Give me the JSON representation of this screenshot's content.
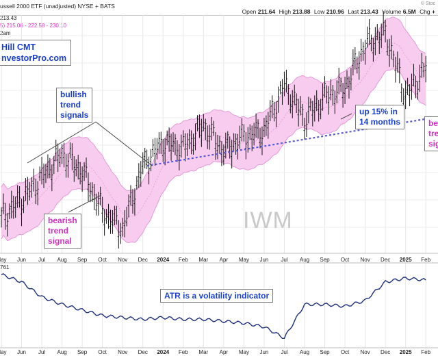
{
  "header": {
    "title": "ussell 2000 ETF (unadjusted) NYSE + BATS",
    "stockcharts_label": "© Stoc",
    "quote": {
      "open_label": "Open",
      "open": "211.64",
      "high_label": "High",
      "high": "213.88",
      "low_label": "Low",
      "low": "210.96",
      "last_label": "Last",
      "last": "213.43",
      "volume_label": "Volume",
      "volume": "6.5M",
      "chg_label": "Chg",
      "chg": "+"
    },
    "price_line": "213.43",
    "band_line": "5) 215.06 - 222.58 - 230.10",
    "time_line": "2am"
  },
  "brand": {
    "line1": "Hill CMT",
    "line2": "nvestorPro.com"
  },
  "annotations": {
    "bullish": "bullish\ntrend\nsignals",
    "bearish": "bearish\ntrend\nsignal",
    "up": "up 15% in\n14 months",
    "right_cut": "be\ntre\nsig"
  },
  "watermark": "IWM",
  "atr": {
    "label": "761",
    "note": "ATR is a volatility indicator"
  },
  "colors": {
    "band_fill": "#f8ccee",
    "band_line": "#e39ad6",
    "trendline": "#5b5bd6",
    "atr_line": "#1c2f7a",
    "annotation_blue": "#1a3fd0",
    "annotation_magenta": "#d42fc3"
  },
  "chart_data": [
    {
      "type": "line",
      "title": "",
      "x": [
        "May",
        "Jun",
        "Jul",
        "Aug",
        "Sep",
        "Oct",
        "Nov",
        "Dec",
        "2024",
        "Feb",
        "Mar",
        "Apr",
        "May",
        "Jun",
        "Jul",
        "Aug",
        "Sep",
        "Oct",
        "Nov",
        "Dec",
        "2025",
        "Feb"
      ],
      "series": [
        {
          "values": [
            172,
            178,
            186,
            194,
            188,
            174,
            168,
            190,
            198,
            196,
            204,
            195,
            200,
            202,
            218,
            206,
            214,
            217,
            232,
            236,
            214,
            224
          ]
        }
      ],
      "price_range_visible": [
        162,
        240
      ],
      "bands": "keltner-style channel shaded pink with dashed centerline",
      "trendline": "dashed blue rising line from Dec 2023 to right edge",
      "grid": true
    },
    {
      "type": "line",
      "title": "ATR",
      "x": [
        "May",
        "Jun",
        "Jul",
        "Aug",
        "Sep",
        "Oct",
        "Nov",
        "Dec",
        "2024",
        "Feb",
        "Mar",
        "Apr",
        "May",
        "Jun",
        "Jul",
        "Aug",
        "Sep",
        "Oct",
        "Nov",
        "Dec",
        "2025",
        "Feb"
      ],
      "series": [
        {
          "values": [
            6.2,
            5.8,
            5.0,
            4.6,
            4.3,
            4.0,
            3.9,
            3.8,
            3.9,
            3.8,
            3.8,
            3.7,
            3.6,
            3.4,
            2.8,
            4.6,
            4.6,
            4.5,
            4.8,
            5.8,
            6.0,
            5.9
          ]
        }
      ],
      "grid": true
    }
  ]
}
